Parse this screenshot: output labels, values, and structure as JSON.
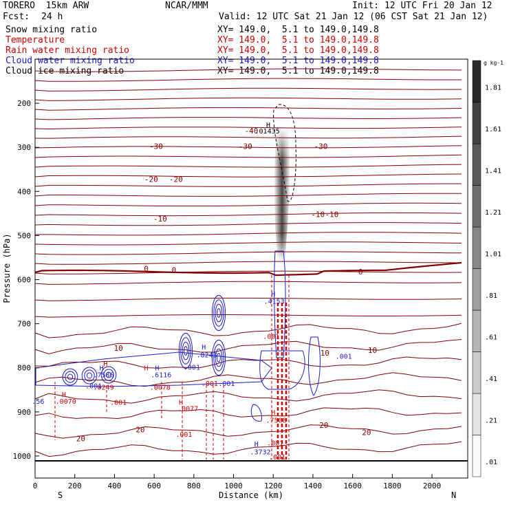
{
  "header": {
    "model": "TORERO  15km ARW",
    "center": "NCAR/MMM",
    "init": "Init: 12 UTC Fri 20 Jan 12",
    "fcst_label": "Fcst:",
    "fcst_value": "24 h",
    "valid": "Valid: 12 UTC Sat 21 Jan 12 (06 CST Sat 21 Jan 12)"
  },
  "fields": [
    {
      "name": "Snow mixing ratio",
      "xy": "XY= 149.0,  5.1 to 149.0,149.8",
      "color": "#000000"
    },
    {
      "name": "Temperature",
      "xy": "XY= 149.0,  5.1 to 149.0,149.8",
      "color": "#cc0000"
    },
    {
      "name": "Rain water mixing ratio",
      "xy": "XY= 149.0,  5.1 to 149.0,149.8",
      "color": "#cc0000"
    },
    {
      "name": "Cloud water mixing ratio",
      "xy": "XY= 149.0,  5.1 to 149.0,149.8",
      "color": "#1a1acc"
    },
    {
      "name": "Cloud ice mixing ratio",
      "xy": "XY= 149.0,  5.1 to 149.0,149.8",
      "color": "#000000"
    }
  ],
  "chart_data": {
    "type": "contour-cross-section",
    "xlabel": "Distance (km)",
    "ylabel": "Pressure (hPa)",
    "xlim": [
      0,
      2180
    ],
    "ylim": [
      1050,
      100
    ],
    "x_ticks": [
      0,
      200,
      400,
      600,
      800,
      1000,
      1200,
      1400,
      1600,
      1800,
      2000
    ],
    "y_ticks": [
      200,
      300,
      400,
      500,
      600,
      700,
      800,
      900,
      1000
    ],
    "x_end_labels": {
      "left": "S",
      "right": "N"
    },
    "colorbar": {
      "unit": "g kg-1",
      "levels": [
        ".01",
        ".21",
        ".41",
        ".61",
        ".81",
        "1.01",
        "1.21",
        "1.41",
        "1.61",
        "1.81"
      ]
    },
    "isotherm_labels": [
      {
        "text": "-40",
        "x": 1090,
        "p": 262
      },
      {
        "text": "-30",
        "x": 610,
        "p": 297
      },
      {
        "text": "-30",
        "x": 1060,
        "p": 297
      },
      {
        "text": "-30",
        "x": 1440,
        "p": 297
      },
      {
        "text": "-20",
        "x": 585,
        "p": 372
      },
      {
        "text": "-20",
        "x": 710,
        "p": 372
      },
      {
        "text": "-10",
        "x": 630,
        "p": 462
      },
      {
        "text": "-10",
        "x": 1425,
        "p": 452
      },
      {
        "text": "-10",
        "x": 1495,
        "p": 452
      },
      {
        "text": "0",
        "x": 560,
        "p": 575
      },
      {
        "text": "0",
        "x": 700,
        "p": 578
      },
      {
        "text": "0",
        "x": 1640,
        "p": 582
      },
      {
        "text": "10",
        "x": 420,
        "p": 755
      },
      {
        "text": "10",
        "x": 1460,
        "p": 766
      },
      {
        "text": "10",
        "x": 1700,
        "p": 760
      },
      {
        "text": "20",
        "x": 530,
        "p": 940
      },
      {
        "text": "20",
        "x": 1455,
        "p": 930
      },
      {
        "text": "20",
        "x": 1670,
        "p": 946
      },
      {
        "text": "20",
        "x": 230,
        "p": 960
      }
    ],
    "value_labels": [
      {
        "text": "H",
        "x": 1175,
        "p": 248,
        "color": "#000000"
      },
      {
        "text": ".01435",
        "x": 1170,
        "p": 262,
        "color": "#000000"
      },
      {
        "text": "H",
        "x": 1200,
        "p": 632,
        "color": "#1a1acc"
      },
      {
        "text": ".4153",
        "x": 1205,
        "p": 648,
        "color": "#1a1acc"
      },
      {
        "text": ".001",
        "x": 1190,
        "p": 728,
        "color": "#cc0000"
      },
      {
        "text": "H",
        "x": 850,
        "p": 752,
        "color": "#1a1acc"
      },
      {
        "text": ".8243",
        "x": 865,
        "p": 770,
        "color": "#1a1acc"
      },
      {
        "text": ".001",
        "x": 790,
        "p": 798,
        "color": "#1a1acc"
      },
      {
        "text": ".001",
        "x": 880,
        "p": 835,
        "color": "#cc0000"
      },
      {
        "text": ".001",
        "x": 965,
        "p": 835,
        "color": "#1a1acc"
      },
      {
        "text": "H",
        "x": 355,
        "p": 790,
        "color": "#cc0000"
      },
      {
        "text": "H",
        "x": 335,
        "p": 800,
        "color": "#1a1acc"
      },
      {
        "text": ".7586",
        "x": 345,
        "p": 815,
        "color": "#1a1acc"
      },
      {
        "text": ".0249",
        "x": 345,
        "p": 843,
        "color": "#cc0000"
      },
      {
        "text": "H",
        "x": 560,
        "p": 800,
        "color": "#cc0000"
      },
      {
        "text": "H",
        "x": 615,
        "p": 800,
        "color": "#1a1acc"
      },
      {
        "text": ".6116",
        "x": 635,
        "p": 815,
        "color": "#1a1acc"
      },
      {
        "text": ".0078",
        "x": 630,
        "p": 843,
        "color": "#cc0000"
      },
      {
        "text": ".001",
        "x": 295,
        "p": 840,
        "color": "#1a1acc"
      },
      {
        "text": ".0070",
        "x": 155,
        "p": 875,
        "color": "#cc0000"
      },
      {
        "text": "H",
        "x": 145,
        "p": 860,
        "color": "#cc0000"
      },
      {
        "text": ".001",
        "x": 420,
        "p": 878,
        "color": "#cc0000"
      },
      {
        "text": "H",
        "x": 735,
        "p": 878,
        "color": "#cc0000"
      },
      {
        "text": ".0077",
        "x": 770,
        "p": 892,
        "color": "#cc0000"
      },
      {
        "text": ".001",
        "x": 750,
        "p": 950,
        "color": "#cc0000"
      },
      {
        "text": ".56",
        "x": 15,
        "p": 875,
        "color": "#1a1acc"
      },
      {
        "text": "H",
        "x": 1200,
        "p": 900,
        "color": "#cc0000"
      },
      {
        "text": ".7508",
        "x": 1215,
        "p": 918,
        "color": "#cc0000"
      },
      {
        "text": ".001",
        "x": 1210,
        "p": 970,
        "color": "#cc0000"
      },
      {
        "text": "H",
        "x": 1115,
        "p": 972,
        "color": "#1a1acc"
      },
      {
        "text": ".3732",
        "x": 1135,
        "p": 990,
        "color": "#1a1acc"
      },
      {
        "text": ".001",
        "x": 1555,
        "p": 773,
        "color": "#1a1acc"
      },
      {
        "text": ".001",
        "x": 1220,
        "p": 1002,
        "color": "#cc0000"
      }
    ]
  }
}
